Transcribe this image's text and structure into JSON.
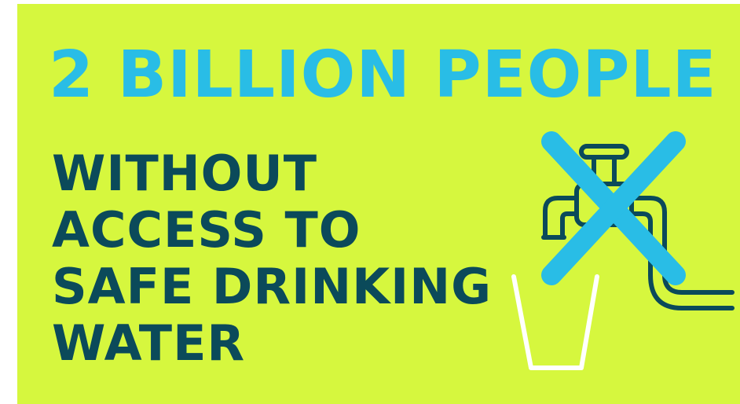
{
  "headline": "2 BILLION PEOPLE",
  "subline": [
    "WITHOUT",
    "ACCESS TO",
    "SAFE DRINKING",
    "WATER"
  ],
  "icons": {
    "tap": "water-tap-icon",
    "glass": "empty-glass-icon",
    "cross": "cross-out-icon"
  },
  "colors": {
    "background": "#d6f73e",
    "headline": "#29bde6",
    "body_text": "#0b4a5a",
    "glass": "#ffffff",
    "cross": "#29bde6"
  }
}
